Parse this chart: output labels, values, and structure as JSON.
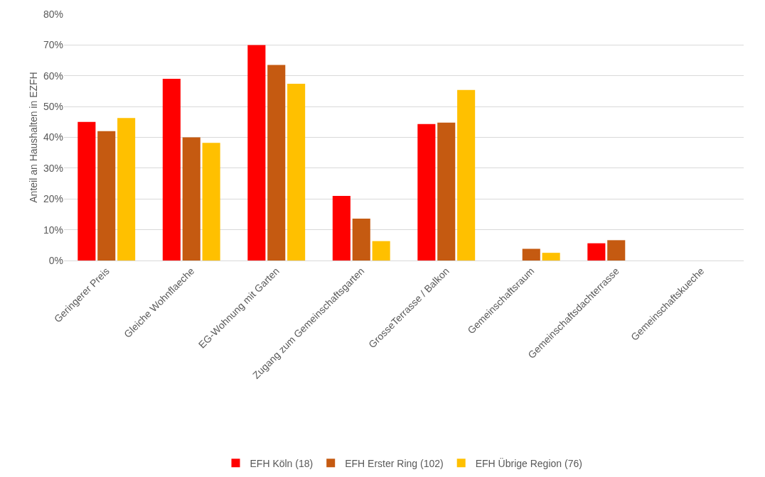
{
  "chart_data": {
    "type": "bar",
    "ylabel": "Anteil an Haushalten in EZFH",
    "categories": [
      "Geringerer Preis",
      "Gleiche Wohnflaeche",
      "EG-Wohnung mit Garten",
      "Zugang zum Gemeinschaftsgarten",
      "GrosseTerrasse / Balkon",
      "Gemeinschaftsraum",
      "Gemeinschaftsdachterrasse",
      "Gemeinschaftskueche"
    ],
    "series": [
      {
        "name": "EFH Köln (18)",
        "color": "#ff0000",
        "values": [
          45,
          59,
          70,
          21,
          44.3,
          0,
          5.6,
          0
        ]
      },
      {
        "name": "EFH Erster Ring (102)",
        "color": "#c55a11",
        "values": [
          42,
          40,
          63.5,
          13.6,
          44.8,
          3.8,
          6.6,
          0
        ]
      },
      {
        "name": "EFH Übrige Region (76)",
        "color": "#ffc000",
        "values": [
          46.3,
          38.2,
          57.4,
          6.3,
          55.4,
          2.5,
          0,
          0
        ]
      }
    ],
    "ylim": [
      0,
      80
    ],
    "yticks": [
      {
        "value": 0,
        "label": "0%"
      },
      {
        "value": 10,
        "label": "10%"
      },
      {
        "value": 20,
        "label": "20%"
      },
      {
        "value": 30,
        "label": "30%"
      },
      {
        "value": 40,
        "label": "40%"
      },
      {
        "value": 50,
        "label": "50%"
      },
      {
        "value": 60,
        "label": "60%"
      },
      {
        "value": 70,
        "label": "70%"
      },
      {
        "value": 80,
        "label": "80%"
      }
    ],
    "grid": "y",
    "legend": "bottom"
  }
}
